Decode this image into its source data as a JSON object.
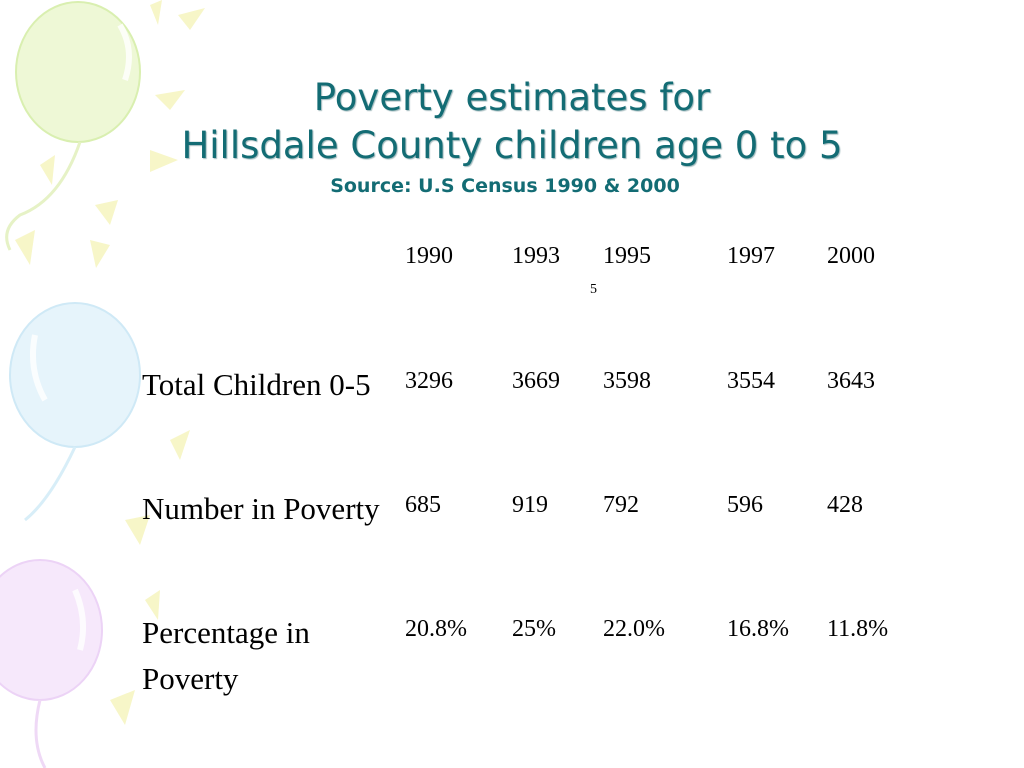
{
  "slide": {
    "title_line1": "Poverty estimates for",
    "title_line2": "Hillsdale County children age 0 to 5",
    "source": "Source: U.S Census 1990 & 2000"
  },
  "table": {
    "years": [
      "1990",
      "1993",
      "1995",
      "1997",
      "2000"
    ],
    "stray_mark": "5",
    "rows": [
      {
        "label": "Total Children 0-5",
        "values": [
          "3296",
          "3669",
          "3598",
          "3554",
          "3643"
        ]
      },
      {
        "label": "Number in Poverty",
        "values": [
          "685",
          "919",
          "792",
          "596",
          "428"
        ]
      },
      {
        "label": "Percentage in Poverty",
        "values": [
          "20.8%",
          "25%",
          "22.0%",
          "16.8%",
          "11.8%"
        ]
      }
    ]
  }
}
